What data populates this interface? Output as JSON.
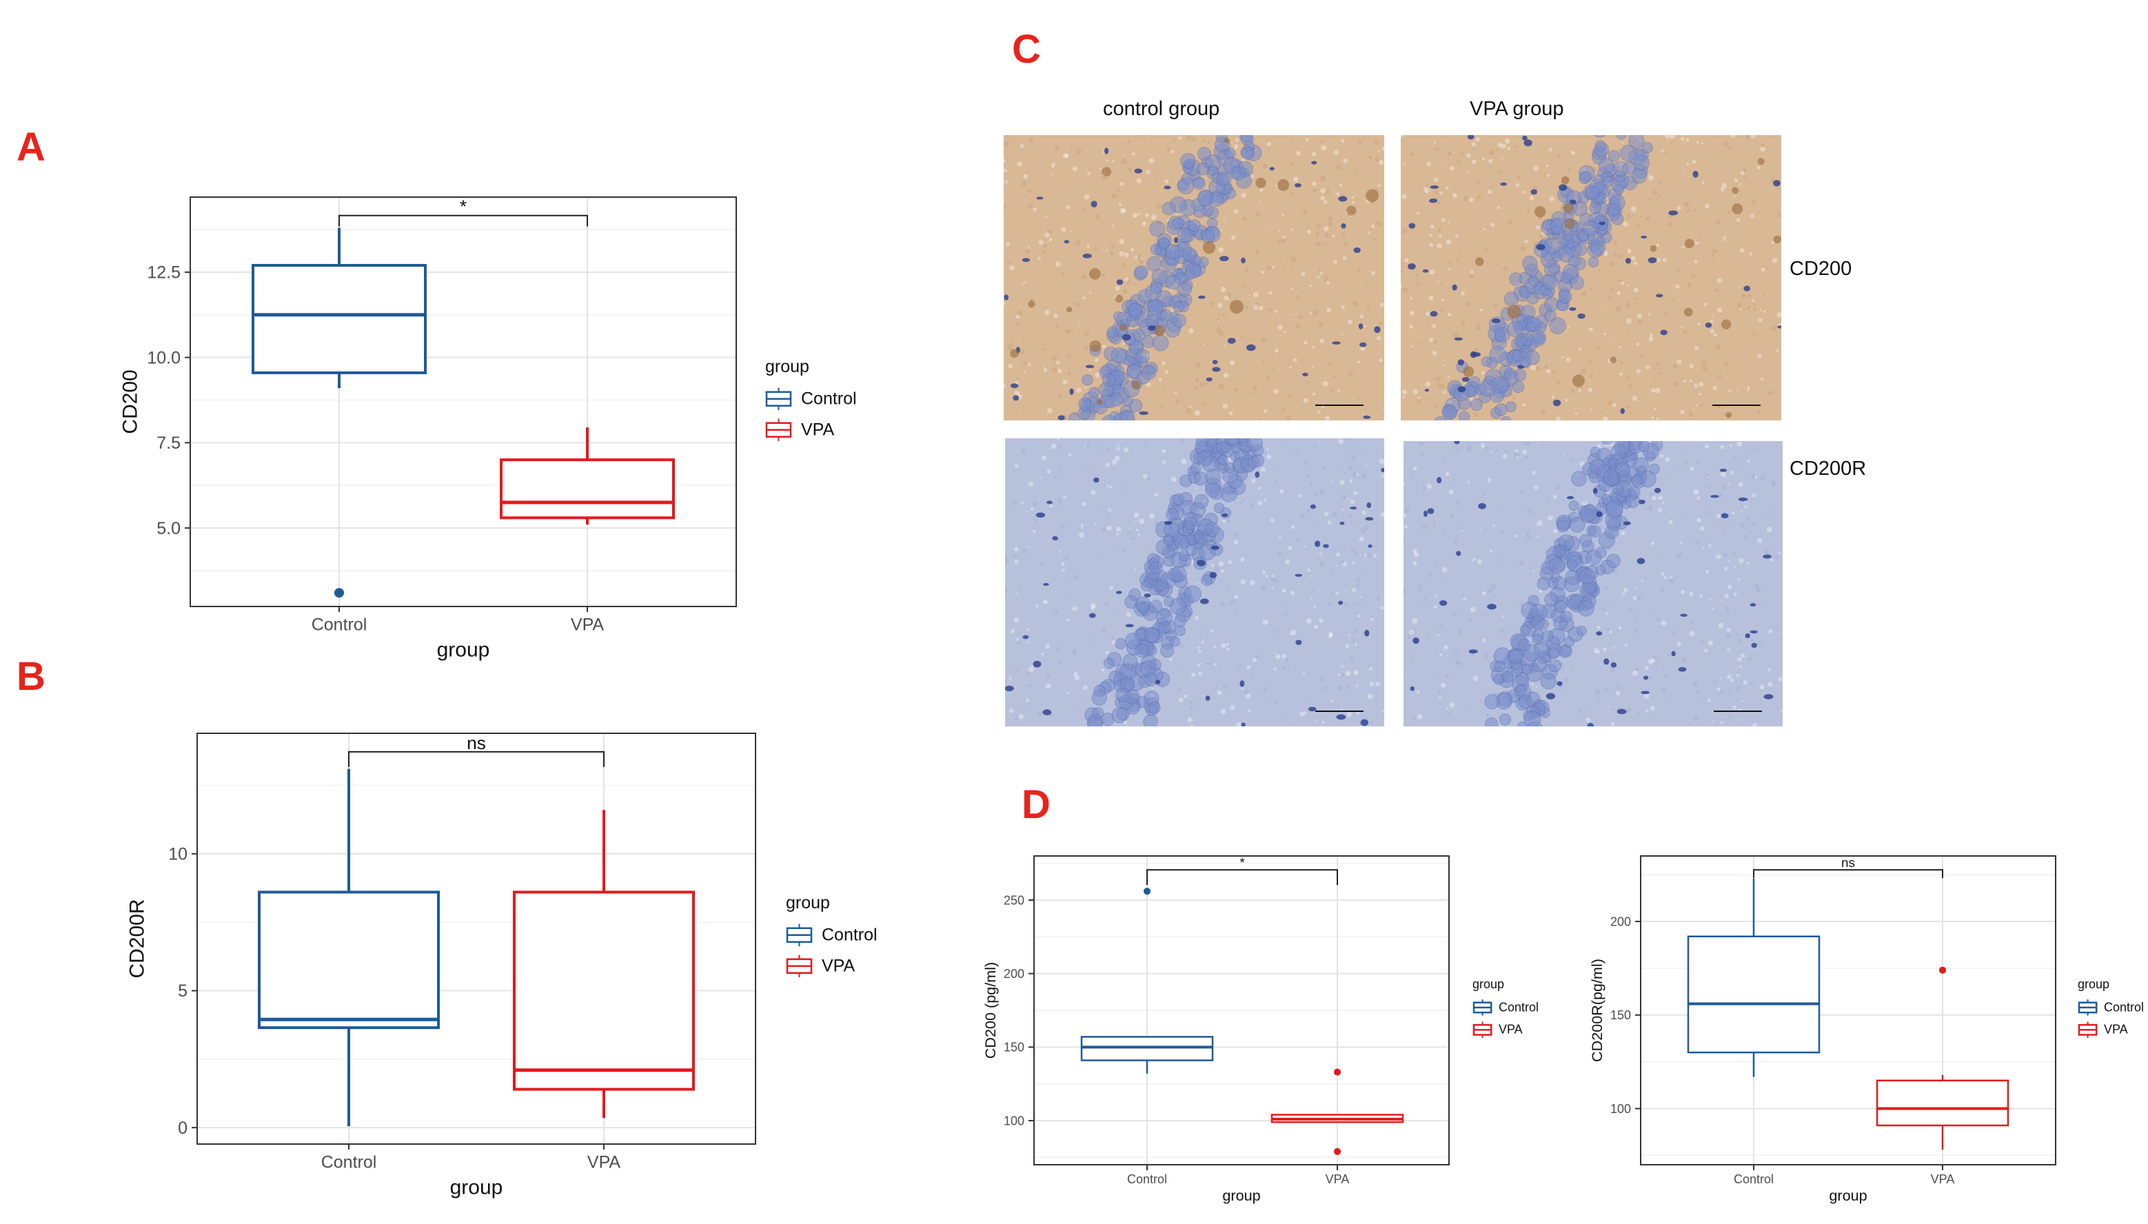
{
  "panels": {
    "A": "A",
    "B": "B",
    "C": "C",
    "D": "D"
  },
  "colors": {
    "control": "#1f5a96",
    "vpa": "#e31a1c",
    "sig_red": "#e8231b"
  },
  "chart_data": [
    {
      "id": "A",
      "type": "box",
      "xlabel": "group",
      "ylabel": "CD200",
      "categories": [
        "Control",
        "VPA"
      ],
      "yticks": [
        5.0,
        7.5,
        10.0,
        12.5
      ],
      "ytick_labels": [
        "5.0",
        "7.5",
        "10.0",
        "12.5"
      ],
      "ylim": [
        2.7,
        14.7
      ],
      "grid": true,
      "legend": {
        "title": "group",
        "placement": "right",
        "items": [
          "Control",
          "VPA"
        ]
      },
      "significance": "*",
      "series": [
        {
          "name": "Control",
          "whisker_low": 9.1,
          "q1": 9.55,
          "median": 11.25,
          "q3": 12.7,
          "whisker_high": 13.8,
          "outliers": [
            3.1
          ]
        },
        {
          "name": "VPA",
          "whisker_low": 5.1,
          "q1": 5.3,
          "median": 5.75,
          "q3": 7.0,
          "whisker_high": 7.95,
          "outliers": []
        }
      ]
    },
    {
      "id": "B",
      "type": "box",
      "xlabel": "group",
      "ylabel": "CD200R",
      "categories": [
        "Control",
        "VPA"
      ],
      "yticks": [
        0,
        5,
        10
      ],
      "ytick_labels": [
        "0",
        "5",
        "10"
      ],
      "ylim": [
        -0.6,
        14.4
      ],
      "grid": true,
      "legend": {
        "title": "group",
        "placement": "right",
        "items": [
          "Control",
          "VPA"
        ]
      },
      "significance": "ns",
      "series": [
        {
          "name": "Control",
          "whisker_low": 0.05,
          "q1": 3.65,
          "median": 3.95,
          "q3": 8.6,
          "whisker_high": 13.1,
          "outliers": []
        },
        {
          "name": "VPA",
          "whisker_low": 0.35,
          "q1": 1.4,
          "median": 2.1,
          "q3": 8.6,
          "whisker_high": 11.6,
          "outliers": []
        }
      ]
    },
    {
      "id": "D1",
      "type": "box",
      "xlabel": "group",
      "ylabel": "CD200  (pg/ml)",
      "categories": [
        "Control",
        "VPA"
      ],
      "yticks": [
        100,
        150,
        200,
        250
      ],
      "ytick_labels": [
        "100",
        "150",
        "200",
        "250"
      ],
      "ylim": [
        70,
        280
      ],
      "grid": true,
      "legend": {
        "title": "group",
        "placement": "right",
        "items": [
          "Control",
          "VPA"
        ]
      },
      "significance": "*",
      "series": [
        {
          "name": "Control",
          "whisker_low": 132,
          "q1": 141,
          "median": 150,
          "q3": 157,
          "whisker_high": 157,
          "outliers": [
            256
          ]
        },
        {
          "name": "VPA",
          "whisker_low": 99,
          "q1": 99,
          "median": 101,
          "q3": 104,
          "whisker_high": 104,
          "outliers": [
            133,
            79
          ]
        }
      ]
    },
    {
      "id": "D2",
      "type": "box",
      "xlabel": "group",
      "ylabel": "CD200R(pg/ml)",
      "categories": [
        "Control",
        "VPA"
      ],
      "yticks": [
        100,
        150,
        200
      ],
      "ytick_labels": [
        "100",
        "150",
        "200"
      ],
      "ylim": [
        70,
        235
      ],
      "grid": true,
      "legend": {
        "title": "group",
        "placement": "right",
        "items": [
          "Control",
          "VPA"
        ]
      },
      "significance": "ns",
      "series": [
        {
          "name": "Control",
          "whisker_low": 117,
          "q1": 130,
          "median": 156,
          "q3": 192,
          "whisker_high": 223,
          "outliers": []
        },
        {
          "name": "VPA",
          "whisker_low": 78,
          "q1": 91,
          "median": 100,
          "q3": 115,
          "whisker_high": 118,
          "outliers": [
            174
          ]
        }
      ]
    }
  ],
  "ihc": {
    "col_headers": [
      "control  group",
      "VPA  group"
    ],
    "row_labels": [
      "CD200",
      "CD200R"
    ],
    "colors": {
      "tan_bg": "#d9b896",
      "blue_bg": "#b8c1dc",
      "nucleus": "#7b8fcb",
      "dark_nucleus": "#2b3f8e",
      "brown_stain": "#9a6a3a"
    }
  }
}
